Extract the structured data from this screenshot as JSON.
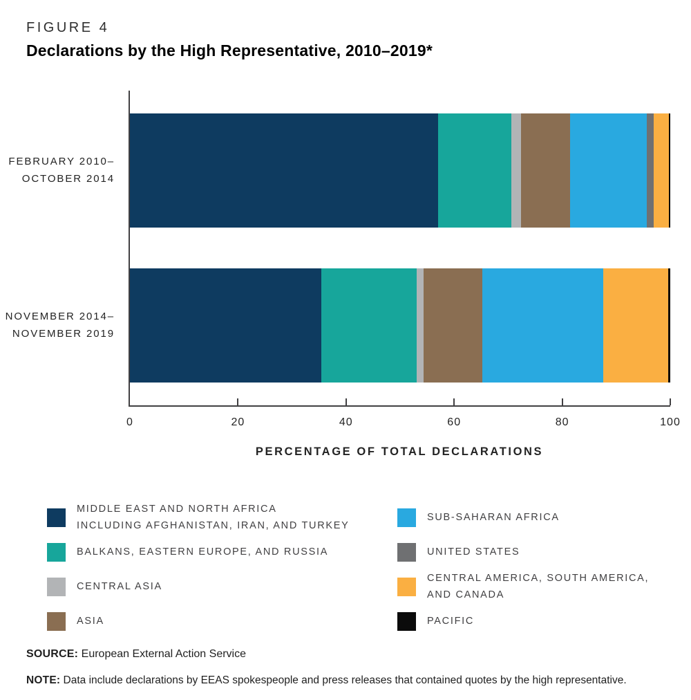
{
  "header": {
    "figure_label": "FIGURE 4",
    "title": "Declarations by the High Representative, 2010–2019*"
  },
  "chart_data": {
    "type": "bar",
    "orientation": "horizontal",
    "stacked": true,
    "unit": "percent",
    "xlabel": "PERCENTAGE OF TOTAL DECLARATIONS",
    "xlim": [
      0,
      100
    ],
    "xticks": [
      0,
      20,
      40,
      60,
      80,
      100
    ],
    "grid": false,
    "categories": [
      {
        "lines": [
          "FEBRUARY 2010–",
          "OCTOBER 2014"
        ]
      },
      {
        "lines": [
          "NOVEMBER 2014–",
          "NOVEMBER 2019"
        ]
      }
    ],
    "series": [
      {
        "name": "MIDDLE EAST AND NORTH AFRICA INCLUDING AFGHANISTAN, IRAN, AND TURKEY",
        "color": "#0E3B60",
        "values": [
          57.0,
          35.4
        ]
      },
      {
        "name": "BALKANS, EASTERN EUROPE, AND RUSSIA",
        "color": "#17A69B",
        "values": [
          13.6,
          17.7
        ]
      },
      {
        "name": "CENTRAL ASIA",
        "color": "#B2B4B6",
        "values": [
          1.8,
          1.2
        ]
      },
      {
        "name": "ASIA",
        "color": "#8A6E52",
        "values": [
          9.1,
          10.9
        ]
      },
      {
        "name": "SUB-SAHARAN AFRICA",
        "color": "#29A9E0",
        "values": [
          14.2,
          22.4
        ]
      },
      {
        "name": "UNITED STATES",
        "color": "#6F7072",
        "values": [
          1.3,
          0
        ]
      },
      {
        "name": "CENTRAL AMERICA, SOUTH AMERICA, AND CANADA",
        "color": "#FAAF42",
        "values": [
          2.8,
          12.0
        ]
      },
      {
        "name": "PACIFIC",
        "color": "#0B0B0B",
        "values": [
          0.2,
          0.4
        ]
      }
    ]
  },
  "legend": {
    "columns": [
      [
        {
          "label_lines": [
            "MIDDLE EAST AND NORTH AFRICA",
            "INCLUDING AFGHANISTAN, IRAN, AND TURKEY"
          ],
          "color": "#0E3B60"
        },
        {
          "label_lines": [
            "BALKANS, EASTERN EUROPE, AND RUSSIA"
          ],
          "color": "#17A69B"
        },
        {
          "label_lines": [
            "CENTRAL ASIA"
          ],
          "color": "#B2B4B6"
        },
        {
          "label_lines": [
            "ASIA"
          ],
          "color": "#8A6E52"
        }
      ],
      [
        {
          "label_lines": [
            "SUB-SAHARAN AFRICA"
          ],
          "color": "#29A9E0"
        },
        {
          "label_lines": [
            "UNITED STATES"
          ],
          "color": "#6F7072"
        },
        {
          "label_lines": [
            "CENTRAL AMERICA, SOUTH AMERICA,",
            "AND CANADA"
          ],
          "color": "#FAAF42"
        },
        {
          "label_lines": [
            "PACIFIC"
          ],
          "color": "#0B0B0B"
        }
      ]
    ]
  },
  "footer": {
    "source_label": "SOURCE:",
    "source_text": "European External Action Service",
    "note_label": "NOTE:",
    "note_text": "Data include declarations by EEAS spokespeople and press releases that contained quotes by the high representative."
  }
}
